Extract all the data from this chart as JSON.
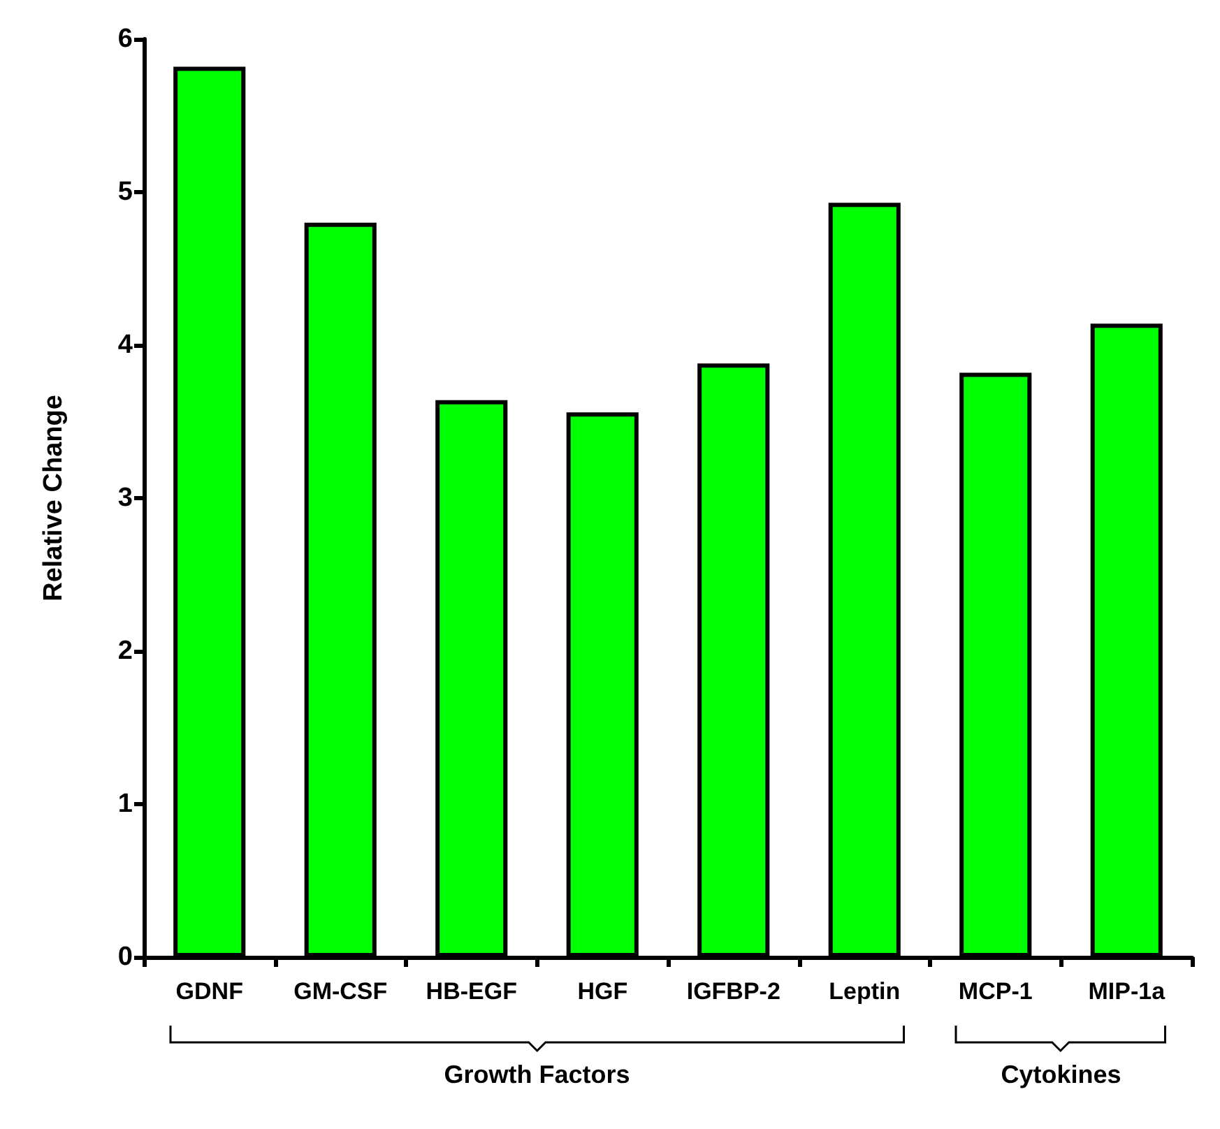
{
  "chart_data": {
    "type": "bar",
    "ylabel": "Relative Change",
    "categories": [
      "GDNF",
      "GM-CSF",
      "HB-EGF",
      "HGF",
      "IGFBP-2",
      "Leptin",
      "MCP-1",
      "MIP-1a"
    ],
    "values": [
      5.82,
      4.8,
      3.64,
      3.56,
      3.88,
      4.93,
      3.82,
      4.14
    ],
    "color": "#00ff00",
    "ylim": [
      0,
      6
    ],
    "yticks": [
      0,
      1,
      2,
      3,
      4,
      5,
      6
    ],
    "grid": false,
    "annotations": [
      "Growth Factors",
      "Cytokines"
    ]
  }
}
